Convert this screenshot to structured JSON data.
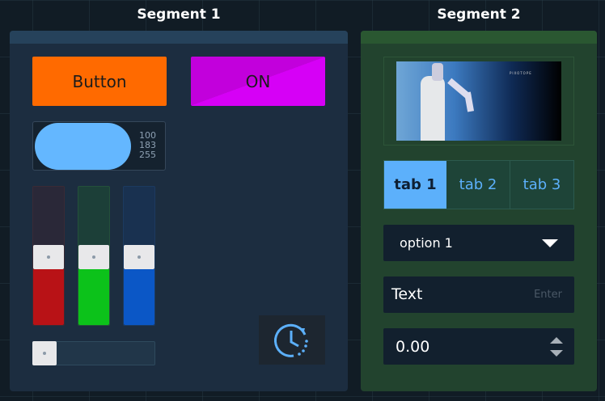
{
  "segment1": {
    "title": "Segment 1",
    "button_label": "Button",
    "toggle_label": "ON",
    "toggle_state": true,
    "button_color": "#ff6a00",
    "toggle_color": "#cc00e6",
    "color_preview": {
      "r": "100",
      "g": "183",
      "b": "255",
      "color": "#64b7ff"
    },
    "sliders": [
      {
        "name": "red",
        "value": 0.5,
        "color": "#b81216"
      },
      {
        "name": "green",
        "value": 0.5,
        "color": "#0cc21a"
      },
      {
        "name": "blue",
        "value": 0.5,
        "color": "#0b57c6"
      }
    ],
    "horizontal_slider": {
      "value": 0
    },
    "clock_button_icon": "clock-history-icon"
  },
  "segment2": {
    "title": "Segment 2",
    "image_logo_text": "PIXOTOPE",
    "tabs": [
      {
        "label": "tab 1",
        "active": true
      },
      {
        "label": "tab 2"
      },
      {
        "label": "tab 3"
      }
    ],
    "dropdown": {
      "selected": "option 1"
    },
    "text_input": {
      "value": "Text",
      "hint": "Enter"
    },
    "number_input": {
      "value": "0.00"
    }
  }
}
